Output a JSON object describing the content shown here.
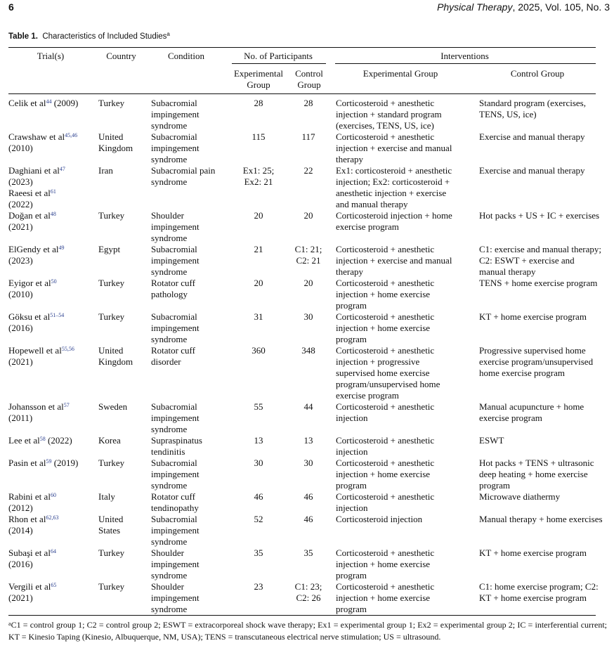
{
  "header": {
    "page_number": "6",
    "journal": "Physical Therapy",
    "journal_rest": ", 2025, Vol. 105, No. 3"
  },
  "caption": {
    "label": "Table 1.",
    "title": "Characteristics of Included Studies",
    "sup": "a"
  },
  "columns": {
    "trial": "Trial(s)",
    "country": "Country",
    "condition": "Condition",
    "participants": "No. of Participants",
    "exp_group": "Experimental\nGroup",
    "ctrl_group": "Control\nGroup",
    "interventions": "Interventions",
    "int_exp": "Experimental Group",
    "int_ctrl": "Control Group"
  },
  "rows": [
    {
      "trial": [
        {
          "t": "Celik et al"
        },
        {
          "sup": "44"
        },
        {
          "t": " (2009)"
        }
      ],
      "country": "Turkey",
      "condition": "Subacromial\nimpingement\nsyndrome",
      "exp_n": "28",
      "ctrl_n": "28",
      "exp": "Corticosteroid + anesthetic\ninjection + standard program\n(exercises, TENS, US, ice)",
      "ctrl": "Standard program (exercises,\n    TENS, US, ice)"
    },
    {
      "trial": [
        {
          "t": "Crawshaw et al"
        },
        {
          "sup": "45,46"
        },
        {
          "t": "\n    (2010)"
        }
      ],
      "country": "United\nKingdom",
      "condition": "Subacromial\nimpingement\nsyndrome",
      "exp_n": "115",
      "ctrl_n": "117",
      "exp": "Corticosteroid + anesthetic\ninjection + exercise and manual\ntherapy",
      "ctrl": "Exercise and manual therapy"
    },
    {
      "trial": [
        {
          "t": "Daghiani et al"
        },
        {
          "sup": "47"
        },
        {
          "t": "\n    (2023)\n    Raeesi et al"
        },
        {
          "sup": "61"
        },
        {
          "t": "\n    (2022)"
        }
      ],
      "country": "Iran",
      "condition": "Subacromial pain\nsyndrome",
      "exp_n": "Ex1: 25;\nEx2: 21",
      "ctrl_n": "22",
      "exp": "Ex1: corticosteroid + anesthetic\ninjection; Ex2: corticosteroid +\nanesthetic injection + exercise\nand manual therapy",
      "ctrl": "Exercise and manual therapy"
    },
    {
      "trial": [
        {
          "t": "Doğan et al"
        },
        {
          "sup": "48"
        },
        {
          "t": "\n    (2021)"
        }
      ],
      "country": "Turkey",
      "condition": "Shoulder\nimpingement\nsyndrome",
      "exp_n": "20",
      "ctrl_n": "20",
      "exp": "Corticosteroid injection + home\nexercise program",
      "ctrl": "Hot packs + US + IC + exercises"
    },
    {
      "trial": [
        {
          "t": "ElGendy et al"
        },
        {
          "sup": "49"
        },
        {
          "t": "\n    (2023)"
        }
      ],
      "country": "Egypt",
      "condition": "Subacromial\nimpingement\nsyndrome",
      "exp_n": "21",
      "ctrl_n": "C1: 21;\nC2: 21",
      "exp": "Corticosteroid + anesthetic\ninjection + exercise and manual\ntherapy",
      "ctrl": "C1: exercise and manual therapy;\n    C2: ESWT + exercise and\n    manual therapy"
    },
    {
      "trial": [
        {
          "t": "Eyigor et al"
        },
        {
          "sup": "50"
        },
        {
          "t": "\n    (2010)"
        }
      ],
      "country": "Turkey",
      "condition": "Rotator cuff\npathology",
      "exp_n": "20",
      "ctrl_n": "20",
      "exp": "Corticosteroid + anesthetic\ninjection + home exercise\nprogram",
      "ctrl": "TENS + home exercise program"
    },
    {
      "trial": [
        {
          "t": "Göksu et al"
        },
        {
          "sup": "51–54"
        },
        {
          "t": "\n    (2016)"
        }
      ],
      "country": "Turkey",
      "condition": "Subacromial\nimpingement\nsyndrome",
      "exp_n": "31",
      "ctrl_n": "30",
      "exp": "Corticosteroid + anesthetic\ninjection + home exercise\nprogram",
      "ctrl": "KT + home exercise program"
    },
    {
      "trial": [
        {
          "t": "Hopewell et al"
        },
        {
          "sup": "55,56"
        },
        {
          "t": "\n    (2021)"
        }
      ],
      "country": "United\nKingdom",
      "condition": "Rotator cuff\ndisorder",
      "exp_n": "360",
      "ctrl_n": "348",
      "exp": "Corticosteroid + anesthetic\ninjection + progressive\nsupervised home exercise\nprogram/unsupervised home\nexercise program",
      "ctrl": "Progressive supervised home\n    exercise program/unsupervised\n    home exercise program"
    },
    {
      "trial": [
        {
          "t": "Johansson et al"
        },
        {
          "sup": "57"
        },
        {
          "t": "\n    (2011)"
        }
      ],
      "country": "Sweden",
      "condition": "Subacromial\nimpingement\nsyndrome",
      "exp_n": "55",
      "ctrl_n": "44",
      "exp": "Corticosteroid + anesthetic\ninjection",
      "ctrl": "Manual acupuncture + home\n    exercise program"
    },
    {
      "trial": [
        {
          "t": "Lee et al"
        },
        {
          "sup": "58"
        },
        {
          "t": " (2022)"
        }
      ],
      "country": "Korea",
      "condition": "Supraspinatus\ntendinitis",
      "exp_n": "13",
      "ctrl_n": "13",
      "exp": "Corticosteroid + anesthetic\ninjection",
      "ctrl": "ESWT"
    },
    {
      "trial": [
        {
          "t": "Pasin et al"
        },
        {
          "sup": "59"
        },
        {
          "t": " (2019)"
        }
      ],
      "country": "Turkey",
      "condition": "Subacromial\nimpingement\nsyndrome",
      "exp_n": "30",
      "ctrl_n": "30",
      "exp": "Corticosteroid + anesthetic\ninjection + home exercise\nprogram",
      "ctrl": "Hot packs + TENS + ultrasonic\n    deep heating + home exercise\n    program"
    },
    {
      "trial": [
        {
          "t": "Rabini et al"
        },
        {
          "sup": "60"
        },
        {
          "t": "\n    (2012)"
        }
      ],
      "country": "Italy",
      "condition": "Rotator cuff\ntendinopathy",
      "exp_n": "46",
      "ctrl_n": "46",
      "exp": "Corticosteroid + anesthetic\ninjection",
      "ctrl": "Microwave diathermy"
    },
    {
      "trial": [
        {
          "t": "Rhon et al"
        },
        {
          "sup": "62,63"
        },
        {
          "t": "\n    (2014)"
        }
      ],
      "country": "United\nStates",
      "condition": "Subacromial\nimpingement\nsyndrome",
      "exp_n": "52",
      "ctrl_n": "46",
      "exp": "Corticosteroid injection",
      "ctrl": "Manual therapy + home exercises"
    },
    {
      "trial": [
        {
          "t": "Subaşi et al"
        },
        {
          "sup": "64"
        },
        {
          "t": "\n    (2016)"
        }
      ],
      "country": "Turkey",
      "condition": "Shoulder\nimpingement\nsyndrome",
      "exp_n": "35",
      "ctrl_n": "35",
      "exp": "Corticosteroid + anesthetic\ninjection + home exercise\nprogram",
      "ctrl": "KT + home exercise program"
    },
    {
      "trial": [
        {
          "t": "Vergili et al"
        },
        {
          "sup": "65"
        },
        {
          "t": "\n    (2021)"
        }
      ],
      "country": "Turkey",
      "condition": "Shoulder\nimpingement\nsyndrome",
      "exp_n": "23",
      "ctrl_n": "C1: 23;\nC2: 26",
      "exp": "Corticosteroid + anesthetic\ninjection + home exercise\nprogram",
      "ctrl": "C1: home exercise program; C2:\n    KT + home exercise program"
    }
  ],
  "footnote": {
    "sup": "a",
    "text": "C1 = control group 1; C2 = control group 2; ESWT = extracorporeal shock wave therapy; Ex1 = experimental group 1; Ex2 = experimental group 2; IC = interferential current; KT = Kinesio Taping (Kinesio, Albuquerque, NM, USA); TENS = transcutaneous electrical nerve stimulation; US = ultrasound."
  }
}
